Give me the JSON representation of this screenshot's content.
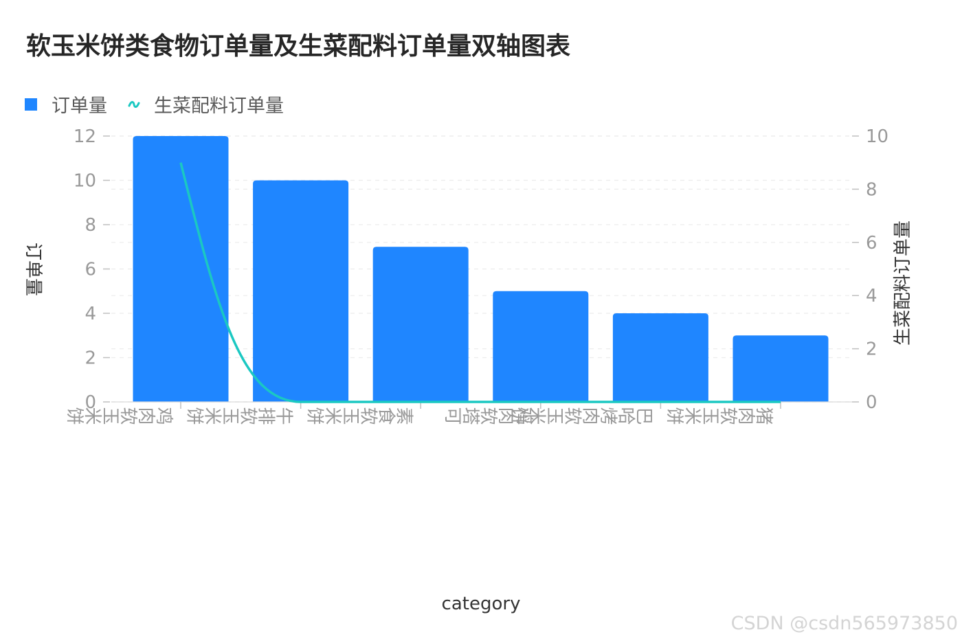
{
  "chart_data": {
    "type": "bar",
    "title": "软玉米饼类食物订单量及生菜配料订单量双轴图表",
    "categories": [
      "鸡肉软玉米饼",
      "牛排软玉米饼",
      "素食软玉米饼",
      "鸡肉软塔可",
      "巴哈烤肉软玉米饼",
      "猪肉软玉米饼"
    ],
    "series": [
      {
        "name": "订单量",
        "type": "bar",
        "axis": "left",
        "values": [
          12,
          10,
          7,
          5,
          4,
          3
        ],
        "color": "#1f86ff"
      },
      {
        "name": "生菜配料订单量",
        "type": "line",
        "axis": "right",
        "values": [
          9,
          0,
          0,
          0,
          0,
          0
        ],
        "color": "#1bc8c2"
      }
    ],
    "xlabel": "category",
    "ylabel_left": "订单量",
    "ylabel_right": "生菜配料订单量",
    "ylim_left": [
      0,
      12
    ],
    "ylim_right": [
      0,
      10
    ],
    "yticks_left": [
      "0",
      "2",
      "4",
      "6",
      "8",
      "10",
      "12"
    ],
    "yticks_right": [
      "0",
      "2",
      "4",
      "6",
      "8",
      "10"
    ],
    "legend_position": "top-left",
    "grid": true
  },
  "watermark": "CSDN @csdn565973850"
}
